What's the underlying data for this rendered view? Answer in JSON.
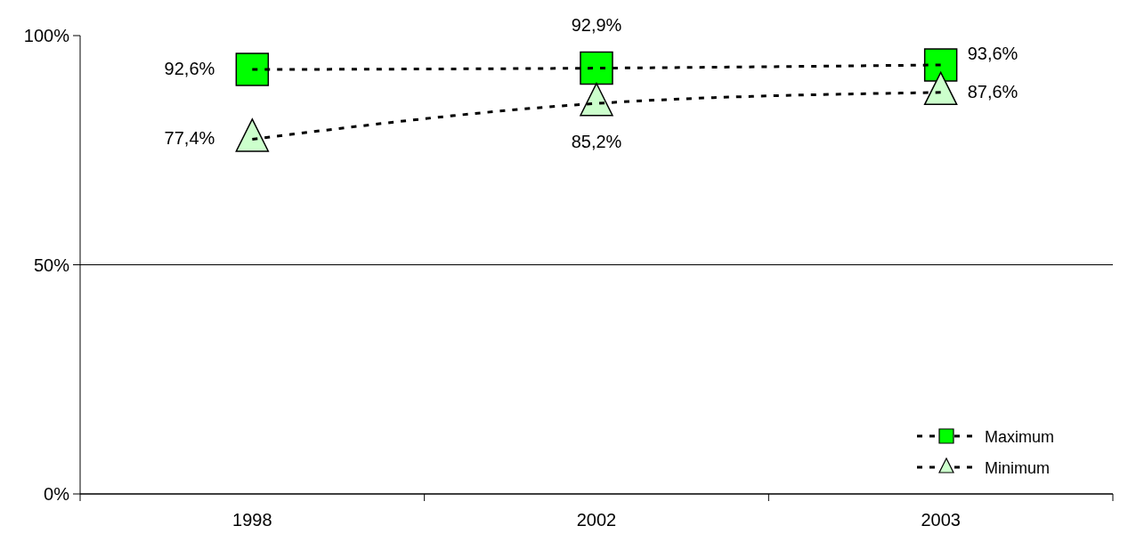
{
  "chart_data": {
    "type": "line",
    "categories": [
      "1998",
      "2002",
      "2003"
    ],
    "series": [
      {
        "name": "Maximum",
        "color": "#00ff00",
        "marker": "square",
        "values": [
          92.6,
          92.9,
          93.6
        ],
        "value_labels": [
          "92,6%",
          "92,9%",
          "93,6%"
        ]
      },
      {
        "name": "Minimum",
        "color": "#ccffcc",
        "marker": "triangle",
        "values": [
          77.4,
          85.2,
          87.6
        ],
        "value_labels": [
          "77,4%",
          "85,2%",
          "87,6%"
        ]
      }
    ],
    "ylim": [
      0,
      100
    ],
    "yticks": [
      {
        "value": 0,
        "label": "0%"
      },
      {
        "value": 50,
        "label": "50%"
      },
      {
        "value": 100,
        "label": "100%"
      }
    ],
    "grid": "y",
    "legend": "bottom right",
    "line_style": "dotted"
  }
}
